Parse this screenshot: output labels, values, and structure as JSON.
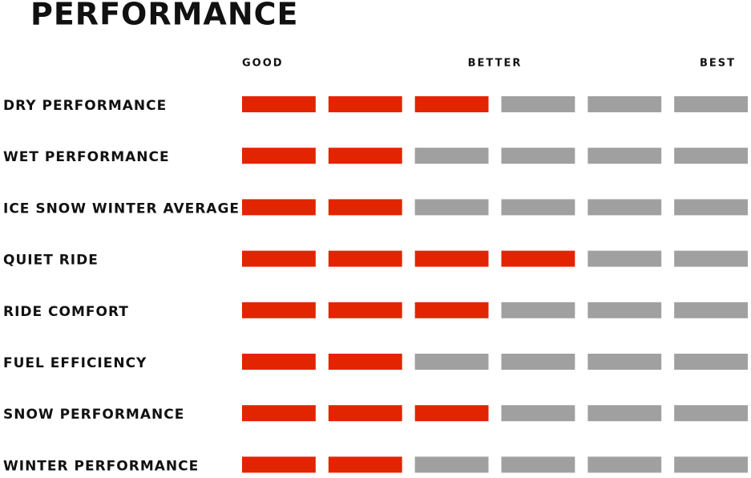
{
  "header": {
    "title": "PERFORMANCE"
  },
  "scale": {
    "labels": [
      "GOOD",
      "BETTER",
      "BEST"
    ],
    "steps": 6,
    "filled_color": "#e32400",
    "empty_color": "#a0a0a0"
  },
  "rows": [
    {
      "label": "DRY PERFORMANCE",
      "rating": 3
    },
    {
      "label": "WET PERFORMANCE",
      "rating": 2
    },
    {
      "label": "ICE SNOW WINTER AVERAGE",
      "rating": 2
    },
    {
      "label": "QUIET RIDE",
      "rating": 4
    },
    {
      "label": "RIDE COMFORT",
      "rating": 3
    },
    {
      "label": "FUEL EFFICIENCY",
      "rating": 2
    },
    {
      "label": "SNOW PERFORMANCE",
      "rating": 3
    },
    {
      "label": "WINTER PERFORMANCE",
      "rating": 2
    }
  ]
}
